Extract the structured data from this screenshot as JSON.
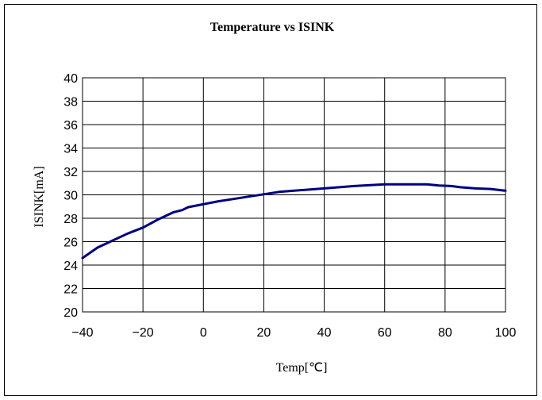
{
  "chart_data": {
    "type": "line",
    "title": "Temperature vs ISINK",
    "xlabel": "Temp[℃]",
    "ylabel": "ISINK[mA]",
    "xlim": [
      -40,
      100
    ],
    "ylim": [
      20,
      40
    ],
    "xticks": [
      -40,
      -20,
      0,
      20,
      40,
      60,
      80,
      100
    ],
    "yticks": [
      20,
      22,
      24,
      26,
      28,
      30,
      32,
      34,
      36,
      38,
      40
    ],
    "xtick_labels": [
      "−40",
      "−20",
      "0",
      "20",
      "40",
      "60",
      "80",
      "100"
    ],
    "ytick_labels": [
      "20",
      "22",
      "24",
      "26",
      "28",
      "30",
      "32",
      "34",
      "36",
      "38",
      "40"
    ],
    "grid": true,
    "legend": "none",
    "series": [
      {
        "color": "#000080",
        "x": [
          -40,
          -35,
          -30,
          -25,
          -20,
          -15,
          -10,
          -7,
          -5,
          0,
          5,
          10,
          15,
          20,
          25,
          30,
          40,
          50,
          60,
          65,
          70,
          74,
          78,
          82,
          85,
          90,
          95,
          100
        ],
        "y": [
          24.6,
          25.5,
          26.1,
          26.7,
          27.2,
          27.9,
          28.5,
          28.7,
          28.95,
          29.2,
          29.45,
          29.65,
          29.85,
          30.05,
          30.25,
          30.35,
          30.55,
          30.75,
          30.9,
          30.9,
          30.9,
          30.9,
          30.8,
          30.75,
          30.65,
          30.55,
          30.5,
          30.35
        ]
      }
    ]
  }
}
